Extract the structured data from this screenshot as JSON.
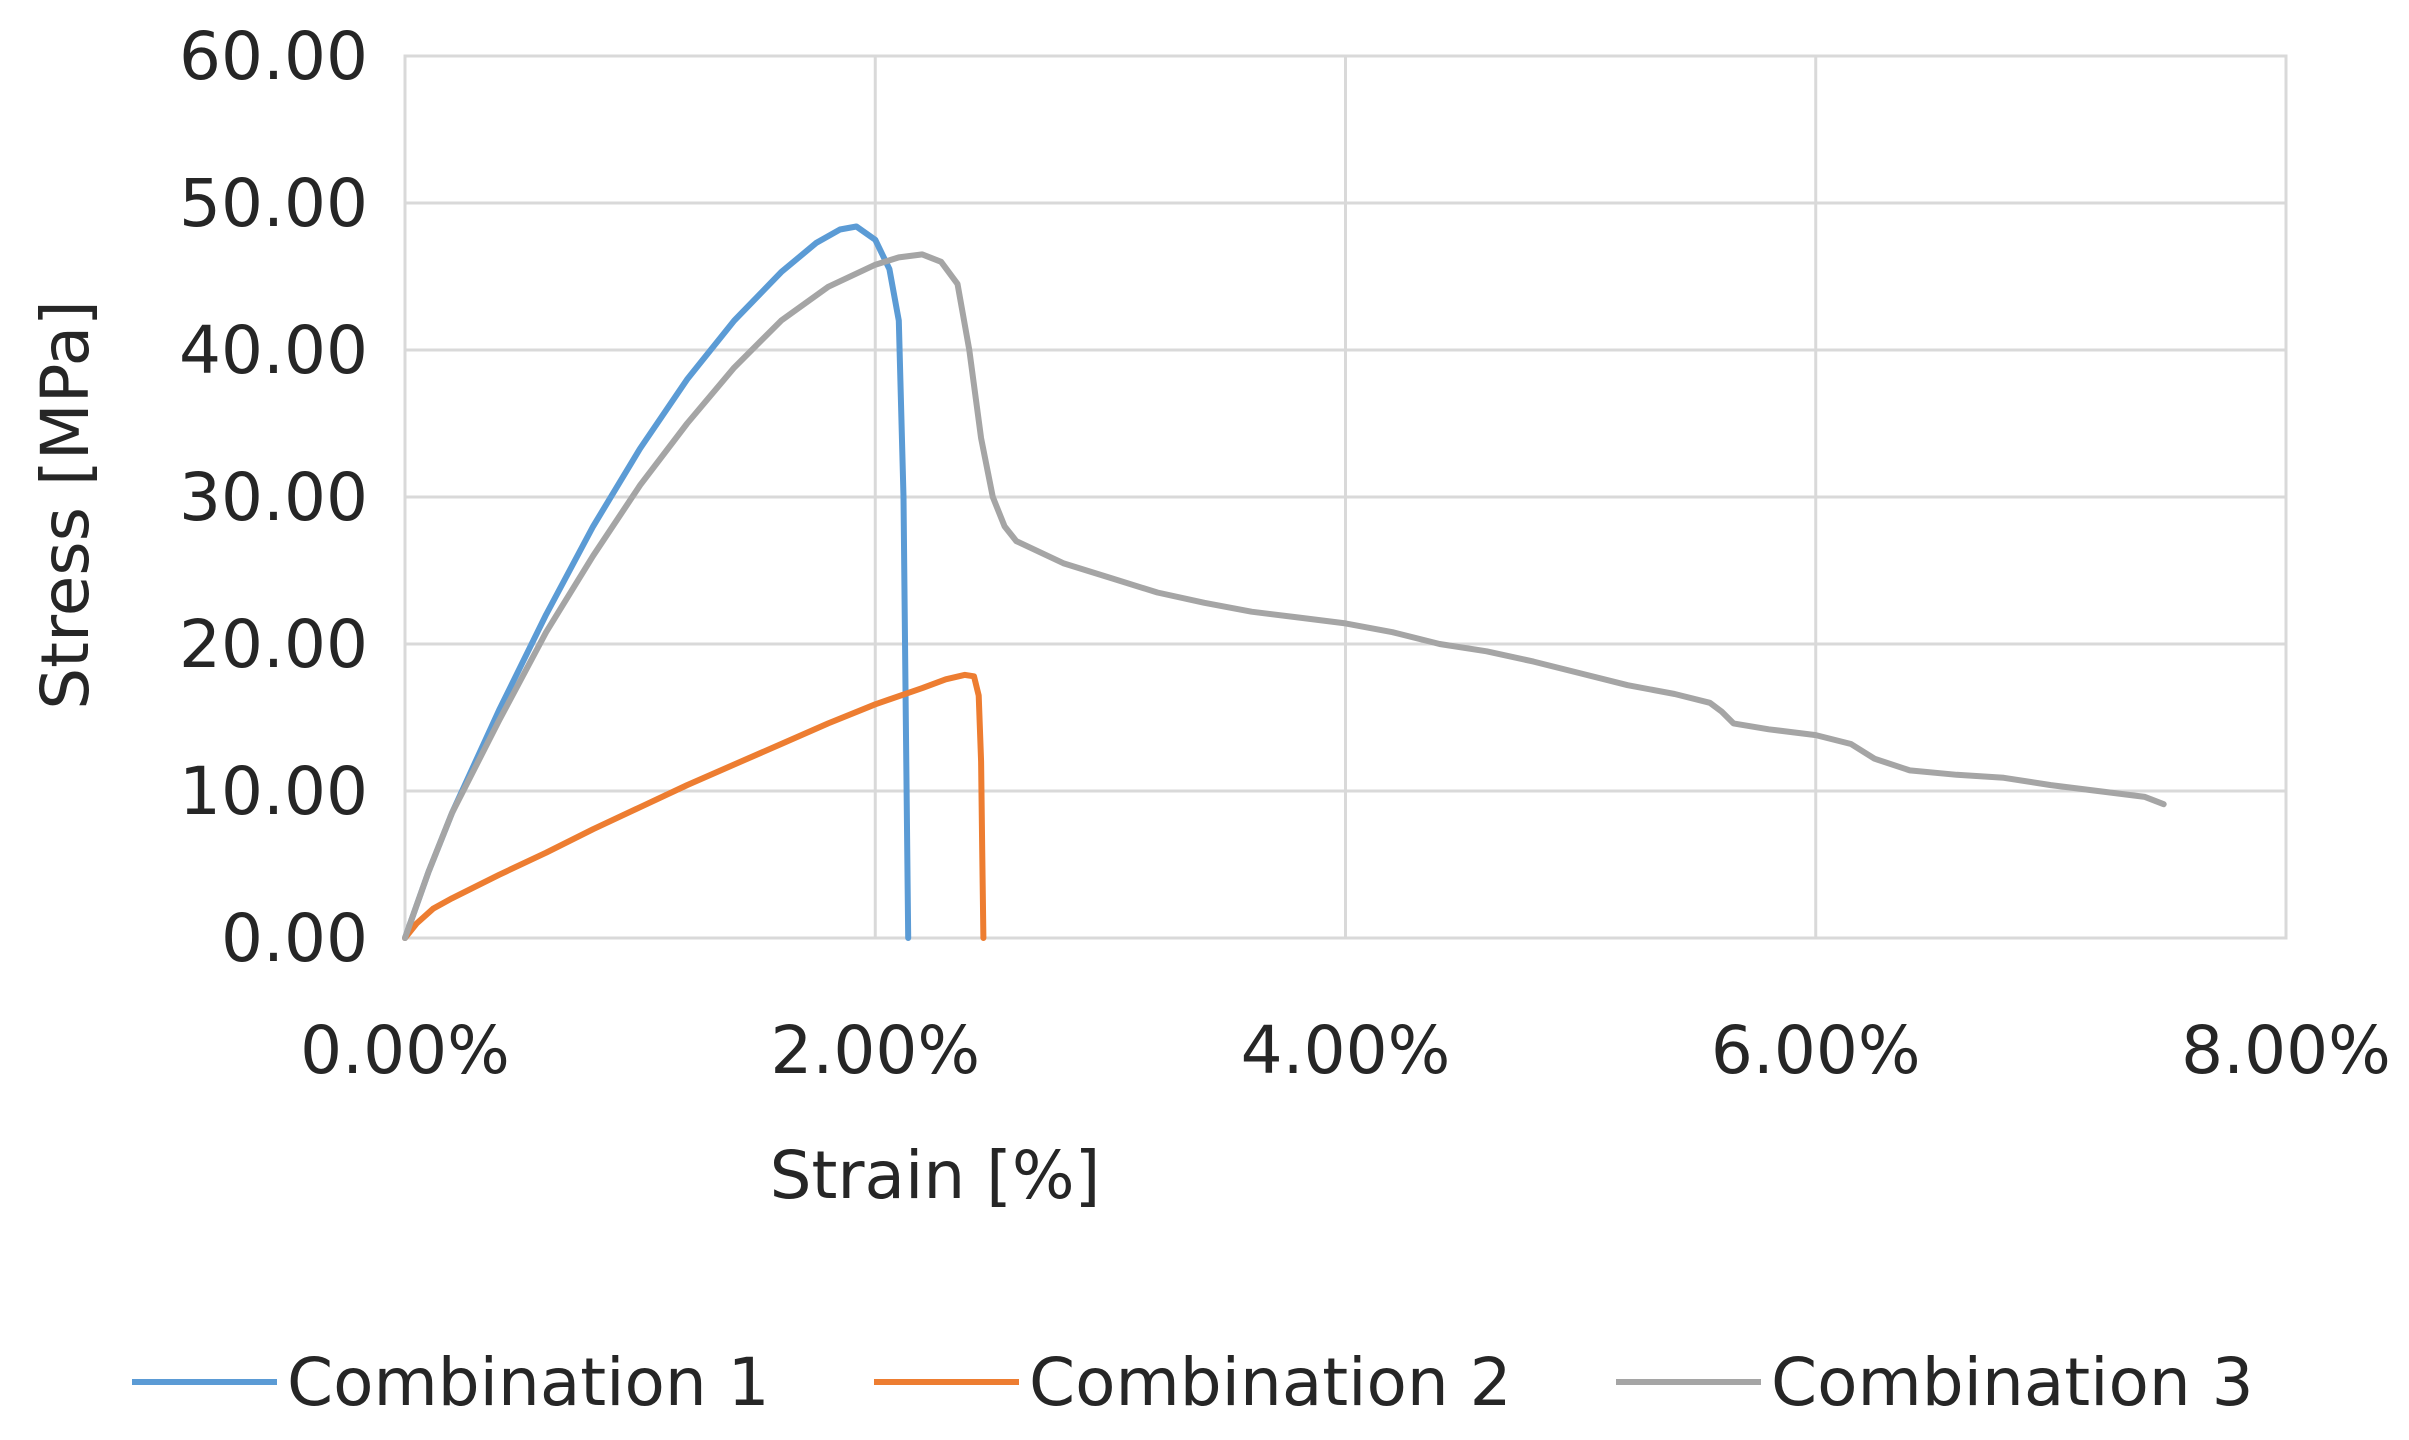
{
  "chart_data": {
    "type": "line",
    "title": "",
    "xlabel": "Strain [%]",
    "ylabel": "Stress [MPa]",
    "xlim": [
      0,
      8
    ],
    "ylim": [
      0,
      60
    ],
    "grid": true,
    "legend_position": "bottom",
    "x_ticks": [
      {
        "value": 0,
        "label": "0.00%"
      },
      {
        "value": 2,
        "label": "2.00%"
      },
      {
        "value": 4,
        "label": "4.00%"
      },
      {
        "value": 6,
        "label": "6.00%"
      },
      {
        "value": 8,
        "label": "8.00%"
      }
    ],
    "y_ticks": [
      {
        "value": 0,
        "label": "0.00"
      },
      {
        "value": 10,
        "label": "10.00"
      },
      {
        "value": 20,
        "label": "20.00"
      },
      {
        "value": 30,
        "label": "30.00"
      },
      {
        "value": 40,
        "label": "40.00"
      },
      {
        "value": 50,
        "label": "50.00"
      },
      {
        "value": 60,
        "label": "60.00"
      }
    ],
    "series": [
      {
        "name": "Combination 1",
        "color": "#5b9bd5",
        "points": [
          [
            0.0,
            0.0
          ],
          [
            0.1,
            4.5
          ],
          [
            0.2,
            8.5
          ],
          [
            0.4,
            15.5
          ],
          [
            0.6,
            22.0
          ],
          [
            0.8,
            28.0
          ],
          [
            1.0,
            33.3
          ],
          [
            1.2,
            38.0
          ],
          [
            1.4,
            42.0
          ],
          [
            1.6,
            45.3
          ],
          [
            1.75,
            47.3
          ],
          [
            1.85,
            48.2
          ],
          [
            1.92,
            48.4
          ],
          [
            2.0,
            47.5
          ],
          [
            2.06,
            45.5
          ],
          [
            2.1,
            42.0
          ],
          [
            2.12,
            30.0
          ],
          [
            2.13,
            15.0
          ],
          [
            2.14,
            0.0
          ]
        ]
      },
      {
        "name": "Combination 2",
        "color": "#ed7d31",
        "points": [
          [
            0.0,
            0.0
          ],
          [
            0.05,
            1.0
          ],
          [
            0.12,
            2.0
          ],
          [
            0.2,
            2.7
          ],
          [
            0.4,
            4.3
          ],
          [
            0.6,
            5.8
          ],
          [
            0.8,
            7.4
          ],
          [
            1.0,
            8.9
          ],
          [
            1.2,
            10.4
          ],
          [
            1.4,
            11.8
          ],
          [
            1.6,
            13.2
          ],
          [
            1.8,
            14.6
          ],
          [
            2.0,
            15.9
          ],
          [
            2.2,
            17.0
          ],
          [
            2.3,
            17.6
          ],
          [
            2.38,
            17.9
          ],
          [
            2.42,
            17.8
          ],
          [
            2.44,
            16.5
          ],
          [
            2.45,
            12.0
          ],
          [
            2.455,
            6.0
          ],
          [
            2.46,
            0.0
          ]
        ]
      },
      {
        "name": "Combination 3",
        "color": "#a5a5a5",
        "points": [
          [
            0.0,
            0.0
          ],
          [
            0.1,
            4.5
          ],
          [
            0.2,
            8.5
          ],
          [
            0.4,
            14.8
          ],
          [
            0.6,
            20.8
          ],
          [
            0.8,
            26.0
          ],
          [
            1.0,
            30.8
          ],
          [
            1.2,
            35.0
          ],
          [
            1.4,
            38.8
          ],
          [
            1.6,
            42.0
          ],
          [
            1.8,
            44.3
          ],
          [
            2.0,
            45.8
          ],
          [
            2.1,
            46.3
          ],
          [
            2.2,
            46.5
          ],
          [
            2.28,
            46.0
          ],
          [
            2.35,
            44.5
          ],
          [
            2.4,
            40.0
          ],
          [
            2.45,
            34.0
          ],
          [
            2.5,
            30.0
          ],
          [
            2.55,
            28.0
          ],
          [
            2.6,
            27.0
          ],
          [
            2.8,
            25.5
          ],
          [
            3.0,
            24.5
          ],
          [
            3.2,
            23.5
          ],
          [
            3.4,
            22.8
          ],
          [
            3.6,
            22.2
          ],
          [
            3.8,
            21.8
          ],
          [
            4.0,
            21.4
          ],
          [
            4.2,
            20.8
          ],
          [
            4.4,
            20.0
          ],
          [
            4.6,
            19.5
          ],
          [
            4.8,
            18.8
          ],
          [
            5.0,
            18.0
          ],
          [
            5.2,
            17.2
          ],
          [
            5.4,
            16.6
          ],
          [
            5.55,
            16.0
          ],
          [
            5.6,
            15.4
          ],
          [
            5.65,
            14.6
          ],
          [
            5.8,
            14.2
          ],
          [
            6.0,
            13.8
          ],
          [
            6.15,
            13.2
          ],
          [
            6.25,
            12.2
          ],
          [
            6.4,
            11.4
          ],
          [
            6.6,
            11.1
          ],
          [
            6.8,
            10.9
          ],
          [
            7.0,
            10.4
          ],
          [
            7.2,
            10.0
          ],
          [
            7.4,
            9.6
          ],
          [
            7.48,
            9.1
          ]
        ]
      }
    ]
  }
}
